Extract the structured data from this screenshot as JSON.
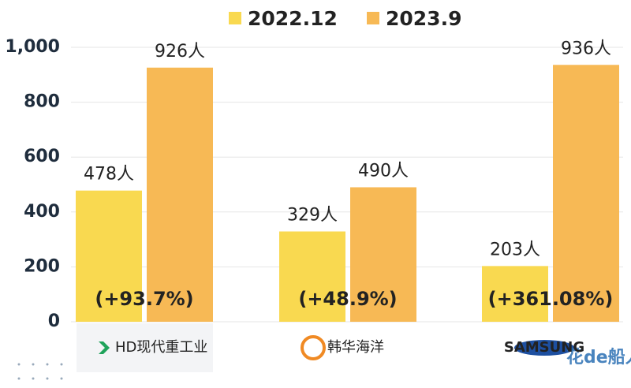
{
  "chart_data": {
    "type": "bar",
    "categories": [
      "HD现代重工业",
      "韩华海洋",
      "SAMSUNG"
    ],
    "series": [
      {
        "name": "2022.12",
        "color": "#f9d950",
        "values": [
          478,
          329,
          203
        ],
        "value_labels": [
          "478人",
          "329人",
          "203人"
        ]
      },
      {
        "name": "2023.9",
        "color": "#f7b955",
        "values": [
          926,
          490,
          936
        ],
        "value_labels": [
          "926人",
          "490人",
          "936人"
        ]
      }
    ],
    "annotations": [
      "(+93.7%)",
      "(+48.9%)",
      "(+361.08%)"
    ],
    "ylim": [
      0,
      1000
    ],
    "yticks": [
      0,
      200,
      400,
      600,
      800,
      {
        "value": 1000,
        "label": "1,000"
      }
    ],
    "grid": true,
    "legend": "top",
    "watermark": "花de船人"
  }
}
